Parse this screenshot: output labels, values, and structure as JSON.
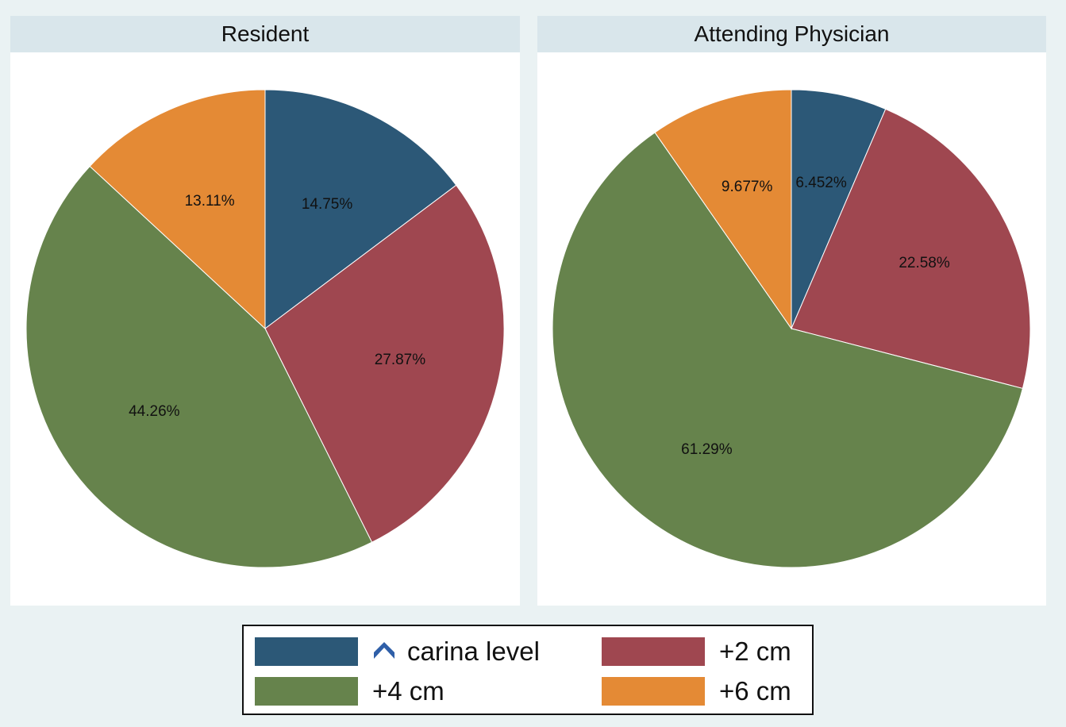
{
  "colors": {
    "carina level": "#2c5877",
    "+2 cm": "#9f4750",
    "+4 cm": "#66834c",
    "+6 cm": "#e48a35",
    "chevron": "#2f5fa8"
  },
  "legend": {
    "items": [
      {
        "label": "carina level",
        "icon": "chevron-up-icon"
      },
      {
        "label": "+2 cm"
      },
      {
        "label": "+4 cm"
      },
      {
        "label": "+6 cm"
      }
    ]
  },
  "chart_data": [
    {
      "type": "pie",
      "title": "Resident",
      "categories": [
        "carina level",
        "+2 cm",
        "+4 cm",
        "+6 cm"
      ],
      "values": [
        14.75,
        27.87,
        44.26,
        13.11
      ],
      "labels": [
        "14.75%",
        "27.87%",
        "44.26%",
        "13.11%"
      ],
      "start": "12 o'clock",
      "direction": "clockwise"
    },
    {
      "type": "pie",
      "title": "Attending Physician",
      "categories": [
        "carina level",
        "+2 cm",
        "+4 cm",
        "+6 cm"
      ],
      "values": [
        6.452,
        22.58,
        61.29,
        9.677
      ],
      "labels": [
        "6.452%",
        "22.58%",
        "61.29%",
        "9.677%"
      ],
      "start": "12 o'clock",
      "direction": "clockwise"
    }
  ]
}
